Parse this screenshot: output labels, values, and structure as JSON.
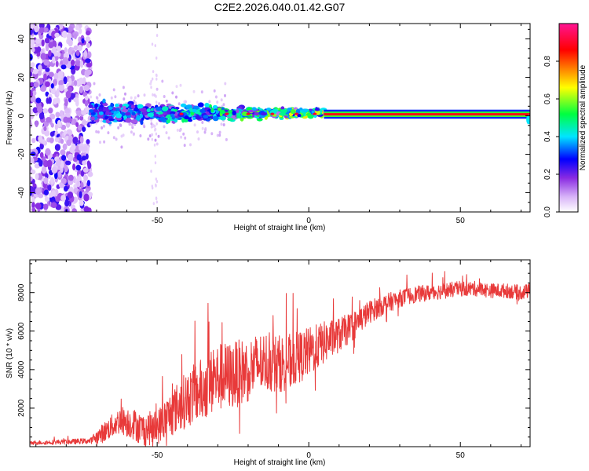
{
  "title": "C2E2.2026.040.01.42.G07",
  "colors": {
    "snr_line": "#e83a3a",
    "axis": "#000000",
    "background": "#ffffff"
  },
  "chart_data": [
    {
      "type": "heatmap",
      "name": "spectrogram",
      "xlabel": "Height of straight line (km)",
      "ylabel": "Frequency (Hz)",
      "xlim": [
        -92,
        73
      ],
      "ylim": [
        -50,
        48
      ],
      "xticks": [
        -50,
        0,
        50
      ],
      "yticks": [
        -40,
        -20,
        0,
        20,
        40
      ],
      "colorbar": {
        "label": "Normalized spectral amplitude",
        "range": [
          0,
          1
        ],
        "ticks": [
          0.0,
          0.2,
          0.4,
          0.6,
          0.8
        ],
        "tick_labels": [
          "0.0",
          "0.2",
          "0.4",
          "0.6",
          "0.8"
        ],
        "colormap": [
          "#ffffff",
          "#8a2be2",
          "#0000ff",
          "#00e5ff",
          "#00ff40",
          "#ffff00",
          "#ff8000",
          "#ff0000",
          "#ff1493"
        ]
      },
      "description_regions": [
        {
          "x_range": [
            -92,
            -72
          ],
          "freq_spread": 48,
          "amplitude": 0.15
        },
        {
          "x_range": [
            -72,
            5
          ],
          "freq_spread": 6,
          "amplitude": 0.45
        },
        {
          "x_range": [
            5,
            73
          ],
          "freq_spread": 1.5,
          "amplitude": 0.85
        }
      ]
    },
    {
      "type": "line",
      "name": "snr",
      "xlabel": "Height of straight line (km)",
      "ylabel": "SNR (10 * v/v)",
      "xlim": [
        -92,
        73
      ],
      "ylim": [
        0,
        9700
      ],
      "xticks": [
        -50,
        0,
        50
      ],
      "yticks": [
        2000,
        4000,
        6000,
        8000
      ],
      "envelope": {
        "x": [
          -92,
          -80,
          -72,
          -68,
          -62,
          -58,
          -55,
          -50,
          -45,
          -40,
          -35,
          -30,
          -25,
          -20,
          -15,
          -10,
          -5,
          0,
          5,
          10,
          15,
          20,
          25,
          30,
          35,
          40,
          45,
          50,
          55,
          60,
          65,
          70,
          73
        ],
        "y": [
          200,
          250,
          300,
          700,
          1400,
          1200,
          900,
          1000,
          1800,
          2500,
          3000,
          3600,
          3700,
          4000,
          4400,
          4300,
          4500,
          4900,
          5400,
          5800,
          6300,
          7000,
          7400,
          7700,
          7900,
          8000,
          8100,
          8200,
          8200,
          8100,
          8100,
          8000,
          8100
        ]
      },
      "noise": {
        "x": [
          -92,
          -72,
          -68,
          -60,
          -50,
          -40,
          -30,
          -20,
          -10,
          0,
          10,
          20,
          30,
          40,
          50,
          60,
          73
        ],
        "amplitude": [
          100,
          150,
          500,
          800,
          900,
          1500,
          1800,
          1700,
          1500,
          1300,
          900,
          600,
          450,
          420,
          400,
          380,
          380
        ]
      }
    }
  ]
}
